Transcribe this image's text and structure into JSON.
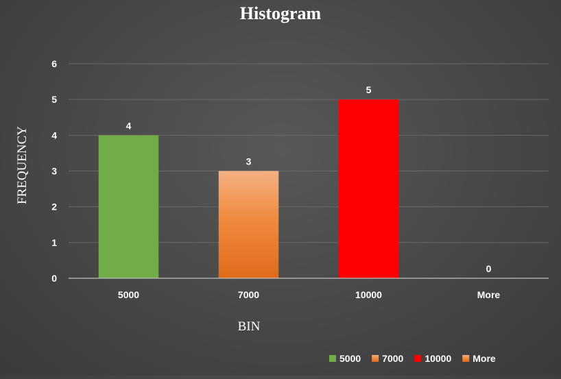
{
  "chart_data": {
    "type": "bar",
    "title": "Histogram",
    "xlabel": "BIN",
    "ylabel": "FREQUENCY",
    "categories": [
      "5000",
      "7000",
      "10000",
      "More"
    ],
    "values": [
      4,
      3,
      5,
      0
    ],
    "ylim": [
      0,
      6
    ],
    "yticks": [
      0,
      1,
      2,
      3,
      4,
      5,
      6
    ],
    "grid": true,
    "legend_position": "bottom-right",
    "colors": [
      "#70ad47",
      "#ed7d31",
      "#ff0000",
      "#ed7d31"
    ]
  }
}
